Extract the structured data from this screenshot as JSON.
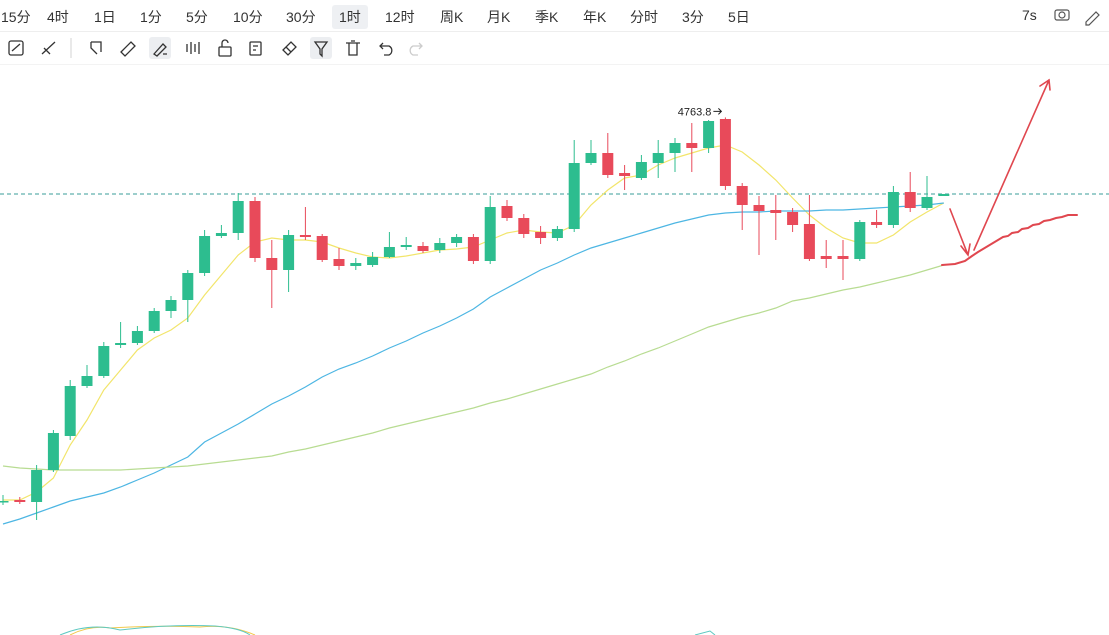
{
  "toolbar": {
    "intervals": [
      "15分",
      "4时",
      "1日",
      "1分",
      "5分",
      "10分",
      "30分",
      "1时",
      "12时",
      "周K",
      "月K",
      "季K",
      "年K",
      "分时",
      "3分",
      "5日"
    ],
    "selected": "1时",
    "refresh": "7s"
  },
  "chart_data": {
    "type": "candlestick",
    "ylim": [
      4500,
      4800
    ],
    "up_color": "#2dbd8f",
    "down_color": "#e84a5a",
    "open": [
      4572,
      4572.5,
      4571.5,
      4587.5,
      4604.5,
      4629.5,
      4634.5,
      4650,
      4651,
      4657,
      4667,
      4672.5,
      4686,
      4704.5,
      4706,
      4722,
      4693.5,
      4687.5,
      4705,
      4704.5,
      4693,
      4689.5,
      4690,
      4694,
      4699,
      4699.5,
      4697.5,
      4701,
      4704,
      4692,
      4719.5,
      4713.5,
      4706.5,
      4703.5,
      4708,
      4741,
      4746,
      4736,
      4733.5,
      4741,
      4746,
      4751,
      4748.5,
      4763,
      4729.5,
      4720,
      4717.5,
      4716.5,
      4710.5,
      4694.5,
      4694.5,
      4693,
      4711.5,
      4710,
      4726.5,
      4718.5,
      4724.5
    ],
    "high": [
      4575,
      4574,
      4590,
      4607.5,
      4632.5,
      4640,
      4651.5,
      4661.5,
      4659.5,
      4668.5,
      4674.5,
      4687.5,
      4707.5,
      4710,
      4726,
      4724,
      4702.5,
      4707.5,
      4719,
      4705.5,
      4698.5,
      4693.5,
      4696.5,
      4706.5,
      4704,
      4701.5,
      4703.5,
      4705.5,
      4705.5,
      4724.5,
      4722.5,
      4715.5,
      4709.5,
      4709.5,
      4752.5,
      4752.5,
      4756,
      4740,
      4745,
      4752.5,
      4753.5,
      4761,
      4762.5,
      4763.8,
      4731,
      4724.5,
      4725,
      4718.5,
      4725,
      4702.5,
      4702.5,
      4712.5,
      4717.5,
      4729.5,
      4736.5,
      4734.5,
      4725.5
    ],
    "low": [
      4570,
      4570.5,
      4562.5,
      4586.5,
      4602.5,
      4628.5,
      4633.5,
      4648.5,
      4650,
      4656,
      4663.5,
      4661.5,
      4684.5,
      4703.5,
      4702.5,
      4691.5,
      4668.5,
      4676.5,
      4702.5,
      4691.5,
      4687.5,
      4687.5,
      4689,
      4693.5,
      4697.5,
      4696,
      4696,
      4699,
      4690.5,
      4690.5,
      4712,
      4703.5,
      4700.5,
      4702,
      4706.5,
      4740,
      4733.5,
      4727.5,
      4732.5,
      4733.5,
      4736.5,
      4736.5,
      4746,
      4727.5,
      4707.5,
      4695,
      4702.5,
      4706.5,
      4692,
      4688.5,
      4682.5,
      4692,
      4708.5,
      4708.5,
      4716.5,
      4717.5,
      4724.5
    ],
    "close": [
      4572,
      4571.5,
      4587.5,
      4606,
      4629.5,
      4634.5,
      4649.5,
      4651,
      4657,
      4667,
      4672.5,
      4686,
      4704.5,
      4706,
      4722,
      4693.5,
      4687.5,
      4705,
      4704,
      4692.5,
      4689.5,
      4691,
      4694,
      4699,
      4700,
      4697,
      4701,
      4704,
      4692,
      4719,
      4713.5,
      4705.5,
      4703.5,
      4708,
      4741,
      4746,
      4735,
      4734.5,
      4741.5,
      4746,
      4751,
      4748.5,
      4762,
      4729.5,
      4720,
      4717,
      4716,
      4710,
      4693,
      4693,
      4693,
      4711.5,
      4710,
      4726.5,
      4718.5,
      4724,
      4725.5
    ],
    "lines": [
      {
        "color": "#f2e56b",
        "values": [
          4572.5,
          4572.5,
          4576.5,
          4583.5,
          4600,
          4612.5,
          4627.5,
          4637.5,
          4647.5,
          4653.5,
          4657.5,
          4663.5,
          4675,
          4685,
          4695,
          4701.5,
          4703.5,
          4702.5,
          4702.5,
          4701.5,
          4698.5,
          4696,
          4694,
          4693.5,
          4694.5,
          4696,
          4697.5,
          4698,
          4699,
          4702.5,
          4706,
          4707.5,
          4706.5,
          4706,
          4710,
          4720,
          4727.5,
          4733.5,
          4735,
          4740,
          4743.5,
          4746,
          4748.5,
          4750,
          4746.5,
          4740,
          4732.5,
          4723.5,
          4715,
          4708.5,
          4703.5,
          4701,
          4701,
          4705,
          4711.5,
          4716.5,
          4721
        ]
      },
      {
        "color": "#4db6e3",
        "values": [
          4560.5,
          4563,
          4566,
          4569,
          4572,
          4574,
          4576,
          4579,
          4582.5,
          4586,
          4590,
          4594,
          4601.5,
          4606,
          4610.5,
          4615.5,
          4620.5,
          4624.5,
          4629,
          4634,
          4638,
          4641,
          4644.5,
          4648.5,
          4652,
          4656,
          4659.5,
          4663.5,
          4668,
          4674,
          4678.5,
          4683,
          4687.5,
          4691,
          4695,
          4698.5,
          4701,
          4703.5,
          4706,
          4708.5,
          4711,
          4713,
          4715,
          4716,
          4716.5,
          4716.5,
          4717,
          4717,
          4717,
          4717.5,
          4717.5,
          4718,
          4718.5,
          4719,
          4719.5,
          4720,
          4721
        ]
      },
      {
        "color": "#b8dc92",
        "values": [
          4589.5,
          4588.5,
          4588,
          4587.5,
          4587.5,
          4587.5,
          4587.5,
          4587.5,
          4588,
          4588.5,
          4589,
          4589.5,
          4590.5,
          4591.5,
          4592.5,
          4593.5,
          4594.5,
          4596.5,
          4598,
          4600,
          4602,
          4604,
          4606,
          4608.5,
          4610.5,
          4612.5,
          4614.5,
          4616.5,
          4618.5,
          4621,
          4623,
          4625.5,
          4628,
          4630.5,
          4633,
          4635.5,
          4639,
          4642,
          4645.5,
          4648.5,
          4652,
          4655.5,
          4659,
          4661.5,
          4664,
          4666,
          4668.5,
          4672,
          4673.5,
          4675.5,
          4677.5,
          4679,
          4681,
          4683,
          4685,
          4687.5,
          4690
        ]
      }
    ],
    "last_price": 4725.5,
    "last_price_color": "#3a9e9a",
    "peak_label": "4763.8"
  }
}
